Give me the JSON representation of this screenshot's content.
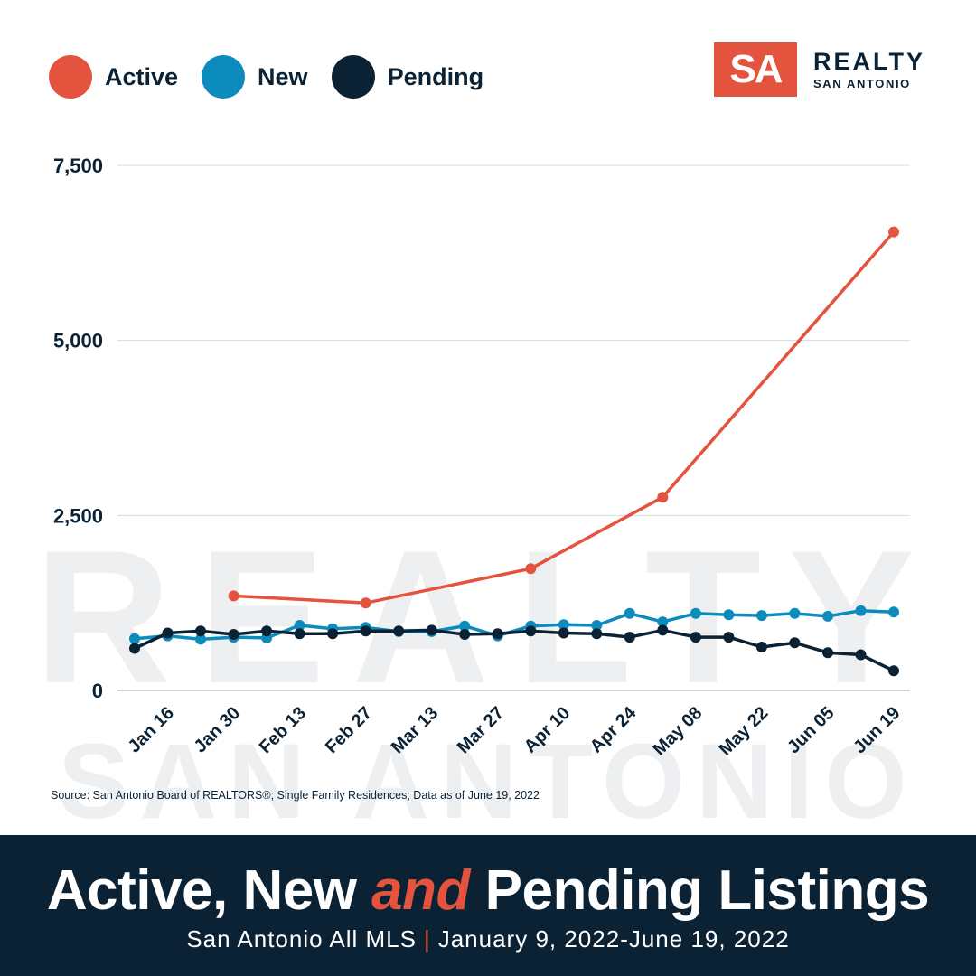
{
  "brand": {
    "logo_mark": "SA",
    "logo_main": "REALTY",
    "logo_sub": "SAN ANTONIO",
    "watermark_main": "REALTY",
    "watermark_sub": "SAN ANTONIO",
    "accent_color": "#e4533d",
    "navy_color": "#0b2235"
  },
  "chart_data": {
    "type": "line",
    "x": [
      "Jan 09",
      "Jan 16",
      "Jan 23",
      "Jan 30",
      "Feb 06",
      "Feb 13",
      "Feb 20",
      "Feb 27",
      "Mar 06",
      "Mar 13",
      "Mar 20",
      "Mar 27",
      "Apr 03",
      "Apr 10",
      "Apr 17",
      "Apr 24",
      "May 01",
      "May 08",
      "May 15",
      "May 22",
      "May 29",
      "Jun 05",
      "Jun 12",
      "Jun 19"
    ],
    "tick_labels": [
      "Jan 16",
      "Jan 30",
      "Feb 13",
      "Feb 27",
      "Mar 13",
      "Mar 27",
      "Apr 10",
      "Apr 24",
      "May 08",
      "May 22",
      "Jun 05",
      "Jun 19"
    ],
    "tick_indices": [
      1,
      3,
      5,
      7,
      9,
      11,
      13,
      15,
      17,
      19,
      21,
      23
    ],
    "y_ticks": [
      0,
      2500,
      5000,
      7500
    ],
    "y_tick_labels": [
      "0",
      "2,500",
      "5,000",
      "7,500"
    ],
    "ylim": [
      0,
      7500
    ],
    "grid": true,
    "legend": "top-left",
    "series": [
      {
        "name": "Active",
        "color": "#e4533d",
        "values": [
          null,
          null,
          null,
          1350,
          null,
          null,
          null,
          1250,
          null,
          null,
          null,
          null,
          1740,
          null,
          null,
          null,
          2760,
          null,
          null,
          null,
          null,
          null,
          null,
          6550
        ],
        "connect_gaps": true
      },
      {
        "name": "New",
        "color": "#0c8bbd",
        "values": [
          740,
          780,
          730,
          760,
          750,
          930,
          880,
          900,
          840,
          840,
          920,
          780,
          920,
          940,
          930,
          1100,
          980,
          1100,
          1080,
          1070,
          1100,
          1060,
          1140,
          1120
        ]
      },
      {
        "name": "Pending",
        "color": "#0b2235",
        "values": [
          600,
          820,
          850,
          800,
          850,
          810,
          810,
          850,
          850,
          860,
          800,
          810,
          850,
          820,
          810,
          760,
          860,
          760,
          760,
          620,
          680,
          540,
          510,
          280
        ]
      }
    ]
  },
  "source_note": "Source: San Antonio Board of REALTORS®; Single Family Residences; Data as of June 19, 2022",
  "footer": {
    "title_part1": "Active, New ",
    "title_accent": "and",
    "title_part2": " Pending Listings",
    "subtitle_left": "San Antonio All MLS",
    "subtitle_sep": "|",
    "subtitle_right": "January 9, 2022-June 19, 2022"
  }
}
